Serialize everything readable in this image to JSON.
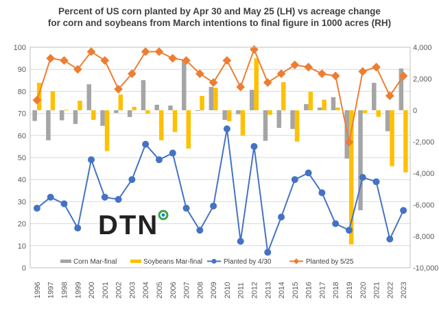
{
  "chart_data": {
    "type": "bar+line",
    "title": "Percent of US corn planted by Apr 30 and May 25 (LH) vs acreage change for corn and soybeans from March intentions to final figure in 1000 acres (RH)",
    "title_lines": [
      "Percent of US corn planted by Apr 30 and May 25 (LH) vs acreage change",
      "for corn and soybeans from March intentions to final figure in 1000 acres (RH)"
    ],
    "categories": [
      "1996",
      "1997",
      "1998",
      "1999",
      "2000",
      "2001",
      "2002",
      "2003",
      "2004",
      "2005",
      "2006",
      "2007",
      "2008",
      "2009",
      "2010",
      "2011",
      "2012",
      "2013",
      "2014",
      "2015",
      "2016",
      "2017",
      "2018",
      "2019",
      "2020",
      "2021",
      "2022",
      "2023"
    ],
    "left_axis": {
      "range": [
        0,
        100
      ],
      "ticks": [
        "0",
        "10",
        "20",
        "30",
        "40",
        "50",
        "60",
        "70",
        "80",
        "90",
        "100"
      ]
    },
    "right_axis": {
      "range": [
        -10000,
        4000
      ],
      "ticks": [
        "-10,000",
        "-8,000",
        "-6,000",
        "-4,000",
        "-2,000",
        "0",
        "2,000",
        "4,000"
      ]
    },
    "grid": true,
    "legend_position": "bottom",
    "series": [
      {
        "name": "Corn Mar-final",
        "type": "bar",
        "axis": "right",
        "color": "#a5a5a5",
        "values": [
          -680,
          -1910,
          -640,
          -870,
          1650,
          -990,
          -170,
          -430,
          1910,
          350,
          300,
          3160,
          -30,
          1480,
          -610,
          -250,
          1300,
          -1940,
          -1120,
          -1190,
          390,
          170,
          830,
          -3070,
          -6350,
          1740,
          -1330,
          2650
        ]
      },
      {
        "name": "Soybeans Mar-final",
        "type": "bar",
        "axis": "right",
        "color": "#ffc000",
        "values": [
          1740,
          1200,
          30,
          610,
          -610,
          -2590,
          1000,
          220,
          -220,
          -1910,
          -1380,
          -2430,
          910,
          1430,
          -700,
          -1620,
          3300,
          -290,
          1780,
          -1990,
          1170,
          670,
          170,
          -8520,
          -170,
          -420,
          -3550,
          -3940
        ]
      },
      {
        "name": "Planted by 4/30",
        "type": "line",
        "axis": "left",
        "color": "#4472c4",
        "values": [
          27,
          32,
          29,
          18,
          49,
          32,
          31,
          40,
          56,
          49,
          52,
          27,
          17,
          28,
          63,
          12,
          55,
          7,
          23,
          40,
          43,
          34,
          20,
          17,
          41,
          39,
          13,
          26
        ]
      },
      {
        "name": "Planted by 5/25",
        "type": "line",
        "axis": "left",
        "color": "#ed7d31",
        "values": [
          76,
          95,
          94,
          90,
          98,
          94,
          81,
          88,
          98,
          98,
          95,
          94,
          88,
          84,
          94,
          82,
          99,
          84,
          88,
          92,
          91,
          88,
          87,
          57,
          89,
          91,
          78,
          87
        ]
      }
    ]
  },
  "logo": {
    "text": "DTN"
  }
}
